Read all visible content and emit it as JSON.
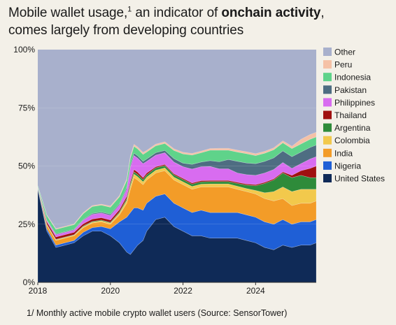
{
  "title": {
    "text_before": "Mobile wallet usage,",
    "superscript": "1",
    "text_middle": " an indicator of ",
    "text_bold": "onchain activity",
    "text_after": ",",
    "line2": "comes largely from developing countries"
  },
  "footnote": "1/ Monthly active mobile crypto wallet users (Source: SensorTower)",
  "chart_data": {
    "type": "area",
    "stacked": true,
    "normalized": true,
    "x": [
      2018.0,
      2018.25,
      2018.5,
      2018.75,
      2019.0,
      2019.25,
      2019.5,
      2019.75,
      2020.0,
      2020.25,
      2020.45,
      2020.55,
      2020.65,
      2020.75,
      2020.9,
      2021.0,
      2021.25,
      2021.5,
      2021.75,
      2022.0,
      2022.25,
      2022.5,
      2022.75,
      2023.0,
      2023.25,
      2023.5,
      2023.75,
      2024.0,
      2024.25,
      2024.5,
      2024.75,
      2025.0,
      2025.25,
      2025.5,
      2025.67
    ],
    "xticks": [
      2018,
      2020,
      2022,
      2024
    ],
    "xtick_labels": [
      "2018",
      "2020",
      "2022",
      "2024"
    ],
    "ylim": [
      0,
      100
    ],
    "yticks": [
      0,
      25,
      50,
      75,
      100
    ],
    "ytick_labels": [
      "0%",
      "25%",
      "50%",
      "75%",
      "100%"
    ],
    "legend_position": "right",
    "series": [
      {
        "name": "United States",
        "color": "#0f2a57",
        "values": [
          40,
          22,
          15,
          16,
          17,
          20,
          22,
          22,
          20,
          17,
          13,
          12,
          14,
          16,
          18,
          22,
          27,
          28,
          24,
          22,
          20,
          20,
          19,
          19,
          19,
          19,
          18,
          17,
          15,
          14,
          16,
          15,
          16,
          16,
          17
        ]
      },
      {
        "name": "Nigeria",
        "color": "#1f5fd6",
        "values": [
          0.5,
          1,
          1,
          1,
          1,
          1.5,
          1.5,
          2,
          3,
          9,
          15,
          18,
          18,
          16,
          13,
          12,
          10,
          10,
          10,
          10,
          10,
          11,
          11,
          11,
          11,
          11,
          11,
          11,
          11,
          11,
          11,
          10,
          10,
          10,
          10
        ]
      },
      {
        "name": "India",
        "color": "#f39c28",
        "values": [
          0.3,
          1.5,
          2,
          2,
          2,
          2,
          2,
          2,
          2,
          3,
          6,
          10,
          13,
          12,
          11,
          10,
          10,
          10,
          10,
          10,
          10,
          10,
          11,
          11,
          11,
          10,
          10,
          10,
          10,
          10,
          9,
          8,
          8,
          8,
          8
        ]
      },
      {
        "name": "Colombia",
        "color": "#f2c94c",
        "values": [
          0,
          0.3,
          0.3,
          0.3,
          0.3,
          0.4,
          0.4,
          0.5,
          0.5,
          0.8,
          1.2,
          1.4,
          1.5,
          1.4,
          1.2,
          1.2,
          1.2,
          1.2,
          1.2,
          1.2,
          1.2,
          1.2,
          1.3,
          1.3,
          1.3,
          1.3,
          1.3,
          1.5,
          2.5,
          4,
          5,
          6,
          6,
          6,
          5
        ]
      },
      {
        "name": "Argentina",
        "color": "#2e8b3a",
        "values": [
          0,
          0.2,
          0.2,
          0.2,
          0.2,
          0.3,
          0.3,
          0.3,
          0.3,
          0.5,
          0.8,
          1,
          1,
          1,
          1,
          1,
          1,
          1,
          1,
          1,
          1,
          1,
          1,
          1,
          1,
          1.2,
          1.5,
          2,
          4,
          5,
          6,
          6,
          6,
          5,
          5
        ]
      },
      {
        "name": "Thailand",
        "color": "#a01010",
        "values": [
          0.2,
          1,
          1,
          1,
          1,
          1,
          1,
          1,
          1,
          1,
          1,
          1,
          1,
          1,
          0.8,
          0.8,
          0.5,
          0.5,
          0.5,
          0.5,
          0.5,
          0.5,
          0.5,
          0.5,
          0.5,
          0.5,
          0.5,
          0.5,
          0.5,
          0.5,
          0.5,
          1,
          2,
          4,
          5
        ]
      },
      {
        "name": "Philippines",
        "color": "#d86cf0",
        "values": [
          0,
          0.5,
          1,
          1,
          1,
          1.5,
          2,
          2,
          2,
          2,
          3,
          6,
          6,
          6,
          6,
          5,
          5,
          5,
          5,
          5,
          6,
          6,
          6,
          5,
          5,
          4,
          4,
          4,
          4,
          4,
          4,
          3,
          3,
          4,
          4
        ]
      },
      {
        "name": "Pakistan",
        "color": "#4e6d82",
        "values": [
          0,
          0.2,
          0.3,
          0.3,
          0.3,
          0.3,
          0.4,
          0.4,
          0.5,
          0.5,
          0.8,
          1,
          1,
          1,
          1,
          1,
          1,
          1,
          1.5,
          1.5,
          2,
          2,
          2.5,
          3,
          4,
          5,
          5,
          5,
          5,
          5,
          5,
          5,
          5,
          5,
          5
        ]
      },
      {
        "name": "Indonesia",
        "color": "#5fd38a",
        "values": [
          0.5,
          2,
          2,
          2,
          2,
          2.5,
          3,
          3,
          3,
          3,
          3,
          3,
          3,
          3,
          3,
          3,
          3,
          3,
          3.5,
          4,
          4,
          4,
          4.5,
          5,
          4,
          4,
          4,
          3.5,
          3.5,
          3.5,
          3.5,
          3.5,
          3.5,
          3.5,
          3.5
        ]
      },
      {
        "name": "Peru",
        "color": "#f5c1a6",
        "values": [
          0,
          0.3,
          0.3,
          0.3,
          0.3,
          0.4,
          0.4,
          0.4,
          0.5,
          0.5,
          0.6,
          0.8,
          0.8,
          0.8,
          0.8,
          0.7,
          0.7,
          0.7,
          0.7,
          0.7,
          0.7,
          0.7,
          0.7,
          0.8,
          0.8,
          0.8,
          0.8,
          0.8,
          0.8,
          0.8,
          0.8,
          1,
          2,
          2,
          2
        ]
      }
    ],
    "remainder_series": {
      "name": "Other",
      "color": "#a8b0cc"
    }
  }
}
